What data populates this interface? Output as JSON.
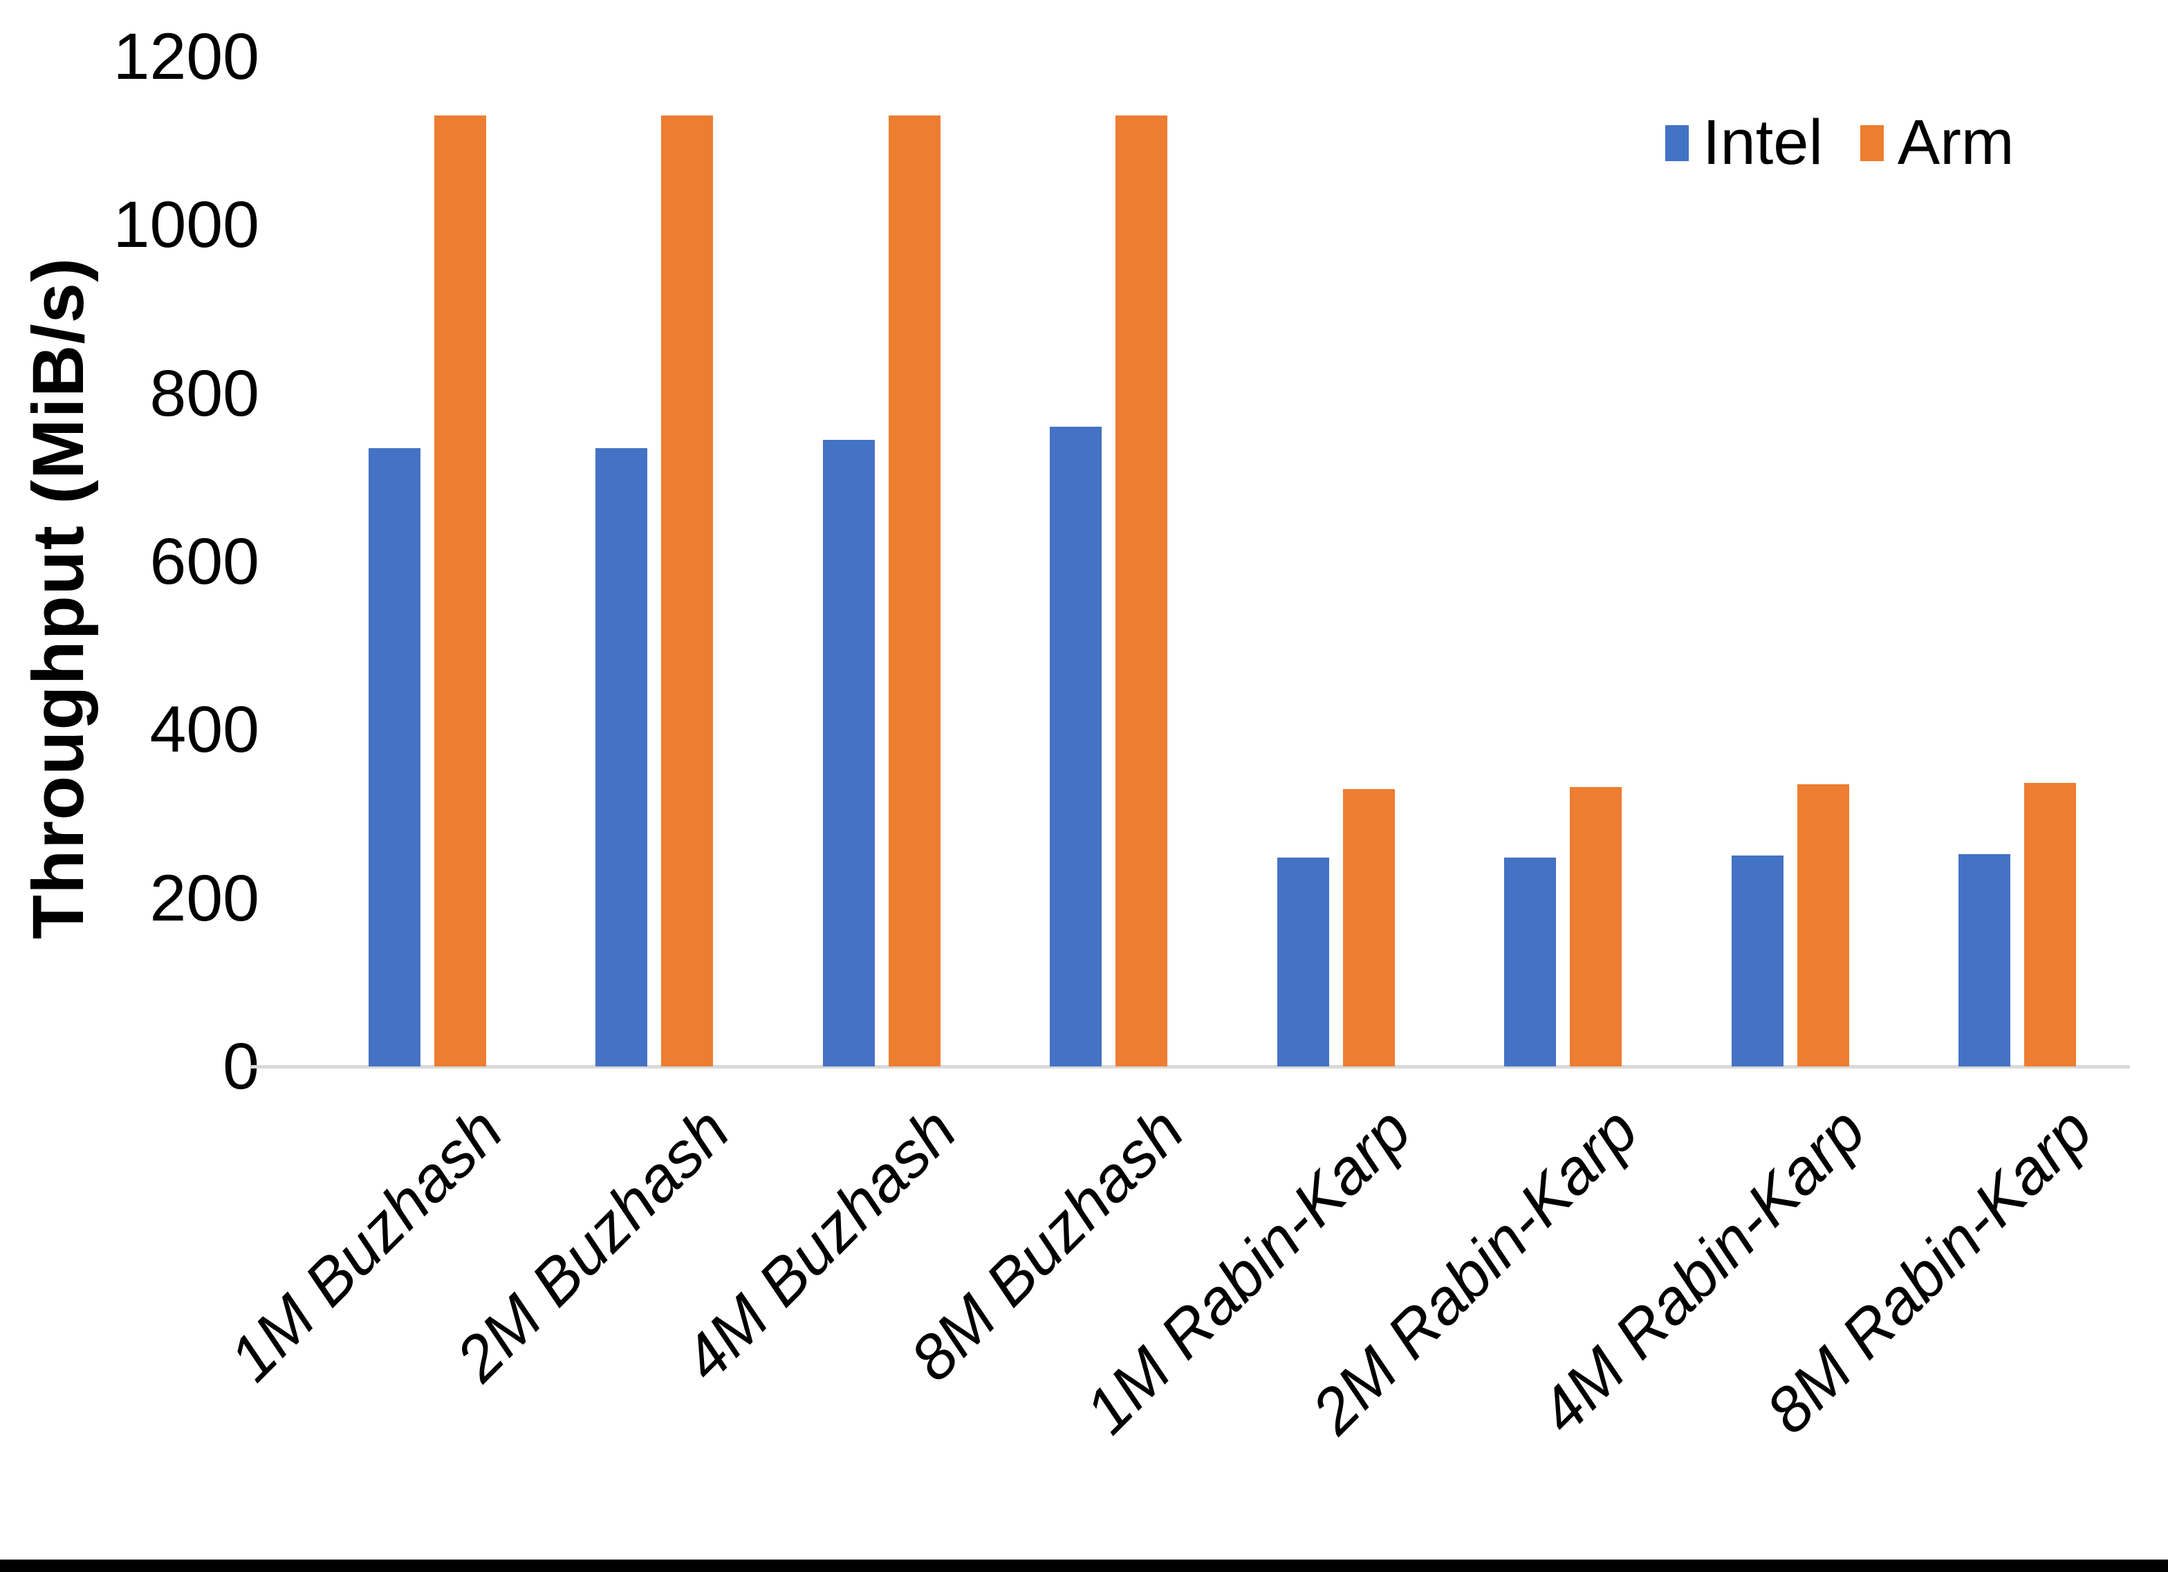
{
  "chart": {
    "y_axis_title": "Throughput (MiB/s)",
    "legend": {
      "intel_label": "Intel",
      "arm_label": "Arm"
    },
    "colors": {
      "intel": "#4472C4",
      "arm": "#ED7D31",
      "axis_line": "#D9D9D9",
      "text": "#000000"
    }
  },
  "chart_data": {
    "type": "bar",
    "categories": [
      "1M Buzhash",
      "2M Buzhash",
      "4M Buzhash",
      "8M Buzhash",
      "1M Rabin-Karp",
      "2M Rabin-Karp",
      "4M Rabin-Karp",
      "8M Rabin-Karp"
    ],
    "series": [
      {
        "name": "Intel",
        "color": "#4472C4",
        "values": [
          735,
          735,
          745,
          760,
          248,
          248,
          251,
          252
        ]
      },
      {
        "name": "Arm",
        "color": "#ED7D31",
        "values": [
          1130,
          1130,
          1130,
          1130,
          330,
          332,
          335,
          337
        ]
      }
    ],
    "title": "",
    "xlabel": "",
    "ylabel": "Throughput (MiB/s)",
    "ylim": [
      0,
      1200
    ],
    "ytick_step": 200,
    "ytick_labels": [
      "0",
      "200",
      "400",
      "600",
      "800",
      "1000",
      "1200"
    ],
    "grid": false,
    "legend_position": "top-right"
  }
}
